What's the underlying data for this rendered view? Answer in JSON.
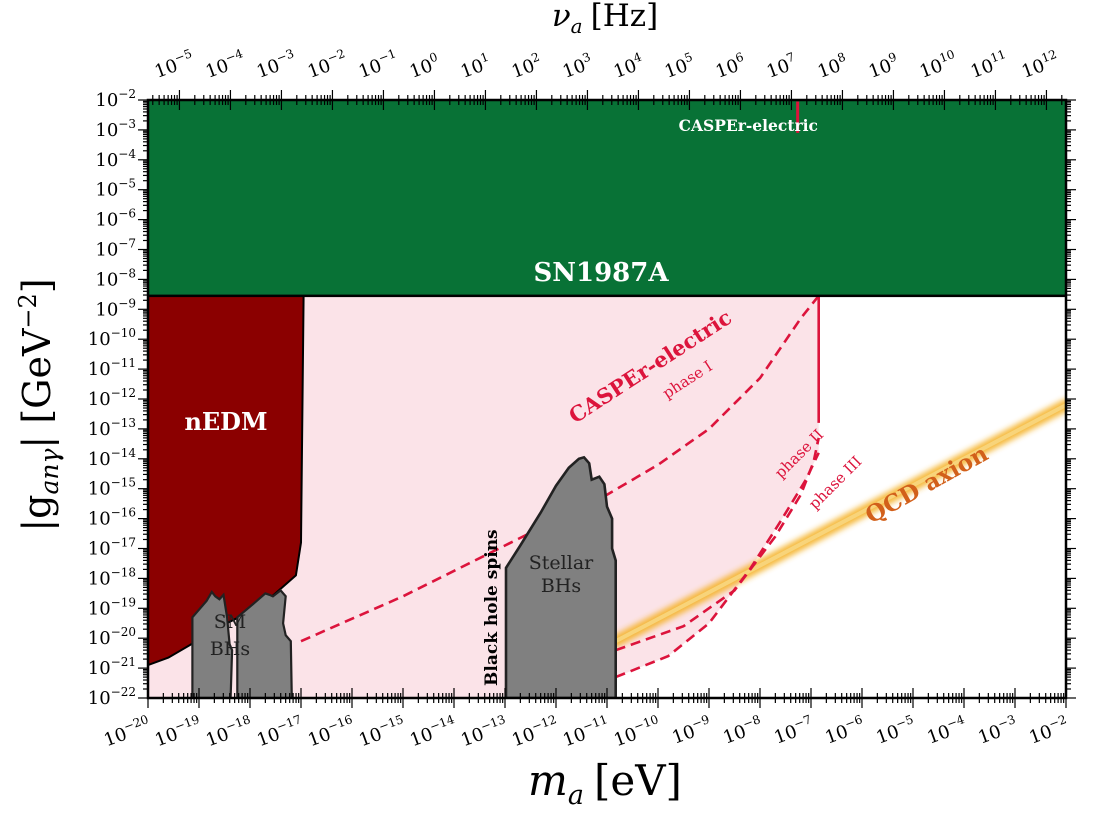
{
  "colors": {
    "sn_green": "#087236",
    "nedm_red": "#8b0000",
    "casper_pink": "#dc143c",
    "region_pink": "#fbe3e8",
    "bh_gray": "#808080",
    "qcd_orange": "#f5b32a",
    "qcd_label": "#d2601a"
  },
  "chart_data": {
    "type": "area",
    "title": "",
    "xlabel_base": "m",
    "xlabel_sub": "a",
    "xlabel_unit": "[eV]",
    "ylabel": "|g",
    "ylabel_sub": "anγ",
    "ylabel_unit": "| [GeV",
    "ylabel_exp": "−2",
    "ylabel_close": "]",
    "top_xlabel_base": "ν",
    "top_xlabel_sub": "a",
    "top_xlabel_unit": "[Hz]",
    "x_scale": "log",
    "y_scale": "log",
    "xlim_log10": [
      -20,
      -2
    ],
    "ylim_log10": [
      -22,
      -2
    ],
    "x_ticks": [
      "10^-20",
      "10^-19",
      "10^-18",
      "10^-17",
      "10^-16",
      "10^-15",
      "10^-14",
      "10^-13",
      "10^-12",
      "10^-11",
      "10^-10",
      "10^-9",
      "10^-8",
      "10^-7",
      "10^-6",
      "10^-5",
      "10^-4",
      "10^-3",
      "10^-2"
    ],
    "y_ticks": [
      "10^-2",
      "10^-3",
      "10^-4",
      "10^-5",
      "10^-6",
      "10^-7",
      "10^-8",
      "10^-9",
      "10^-10",
      "10^-11",
      "10^-12",
      "10^-13",
      "10^-14",
      "10^-15",
      "10^-16",
      "10^-17",
      "10^-18",
      "10^-19",
      "10^-20",
      "10^-21",
      "10^-22"
    ],
    "top_x_ticks": [
      "10^-5",
      "10^-4",
      "10^-3",
      "10^-2",
      "10^-1",
      "10^0",
      "10^1",
      "10^2",
      "10^3",
      "10^4",
      "10^5",
      "10^6",
      "10^7",
      "10^8",
      "10^9",
      "10^10",
      "10^11",
      "10^12"
    ],
    "regions": [
      {
        "name": "SN1987A",
        "label": "SN1987A",
        "type": "filled",
        "log_x": [
          -20,
          -2
        ],
        "log_y_min": -8.55,
        "log_y_max": -2
      },
      {
        "name": "nEDM",
        "label": "nEDM",
        "type": "filled",
        "boundary": [
          [
            -20,
            -20.9
          ],
          [
            -19.6,
            -20.65
          ],
          [
            -19,
            -20.05
          ],
          [
            -18.4,
            -19.45
          ],
          [
            -17.8,
            -18.95
          ],
          [
            -17.1,
            -17.9
          ],
          [
            -17,
            -16.8
          ],
          [
            -16.95,
            -8.55
          ]
        ]
      },
      {
        "name": "SM BHs",
        "label_line1": "SM",
        "label_line2": "BHs",
        "type": "filled",
        "peaks_log_m": [
          -18.75,
          -17.65
        ],
        "peak_log_g": [
          -18.4,
          -18.45
        ]
      },
      {
        "name": "Stellar BHs",
        "label_line1": "Stellar",
        "label_line2": "BHs",
        "type": "filled",
        "log_x_range": [
          -12.98,
          -10.83
        ],
        "peak_log_m": -11.5,
        "peak_log_g": -13.95
      }
    ],
    "annotations": {
      "black_hole_spins": "Black hole spins",
      "casper_top": "CASPEr-electric",
      "casper_main": "CASPEr-electric",
      "phase1": "phase I",
      "phase2": "phase II",
      "phase3": "phase III",
      "qcd": "QCD axion"
    },
    "series": [
      {
        "name": "CASPEr-electric phase I",
        "style": "dashed",
        "points": [
          [
            -17,
            -20.1
          ],
          [
            -15,
            -18.6
          ],
          [
            -13,
            -16.9
          ],
          [
            -11,
            -15.2
          ],
          [
            -10,
            -14.2
          ],
          [
            -9,
            -13.0
          ],
          [
            -8,
            -11.3
          ],
          [
            -7.2,
            -9.3
          ],
          [
            -6.85,
            -8.55
          ]
        ]
      },
      {
        "name": "CASPEr-electric phase II",
        "style": "dashed",
        "points": [
          [
            -10.83,
            -20.4
          ],
          [
            -9.5,
            -19.6
          ],
          [
            -8.5,
            -18.4
          ],
          [
            -7.7,
            -16.6
          ],
          [
            -7.2,
            -15.2
          ],
          [
            -6.95,
            -14.1
          ],
          [
            -6.85,
            -13.3
          ]
        ]
      },
      {
        "name": "CASPEr-electric phase III",
        "style": "dashed",
        "points": [
          [
            -10.83,
            -21.3
          ],
          [
            -9.8,
            -20.6
          ],
          [
            -9,
            -19.5
          ],
          [
            -8.2,
            -17.7
          ],
          [
            -7.6,
            -16.1
          ],
          [
            -7.1,
            -14.7
          ],
          [
            -6.85,
            -13.8
          ]
        ]
      },
      {
        "name": "CASPEr-electric projected reach",
        "style": "solid",
        "points": [
          [
            -6.85,
            -8.55
          ],
          [
            -6.85,
            -12.8
          ]
        ]
      },
      {
        "name": "QCD axion",
        "style": "band",
        "points": [
          [
            -10.83,
            -20.1
          ],
          [
            -2,
            -12.2
          ]
        ]
      }
    ]
  }
}
